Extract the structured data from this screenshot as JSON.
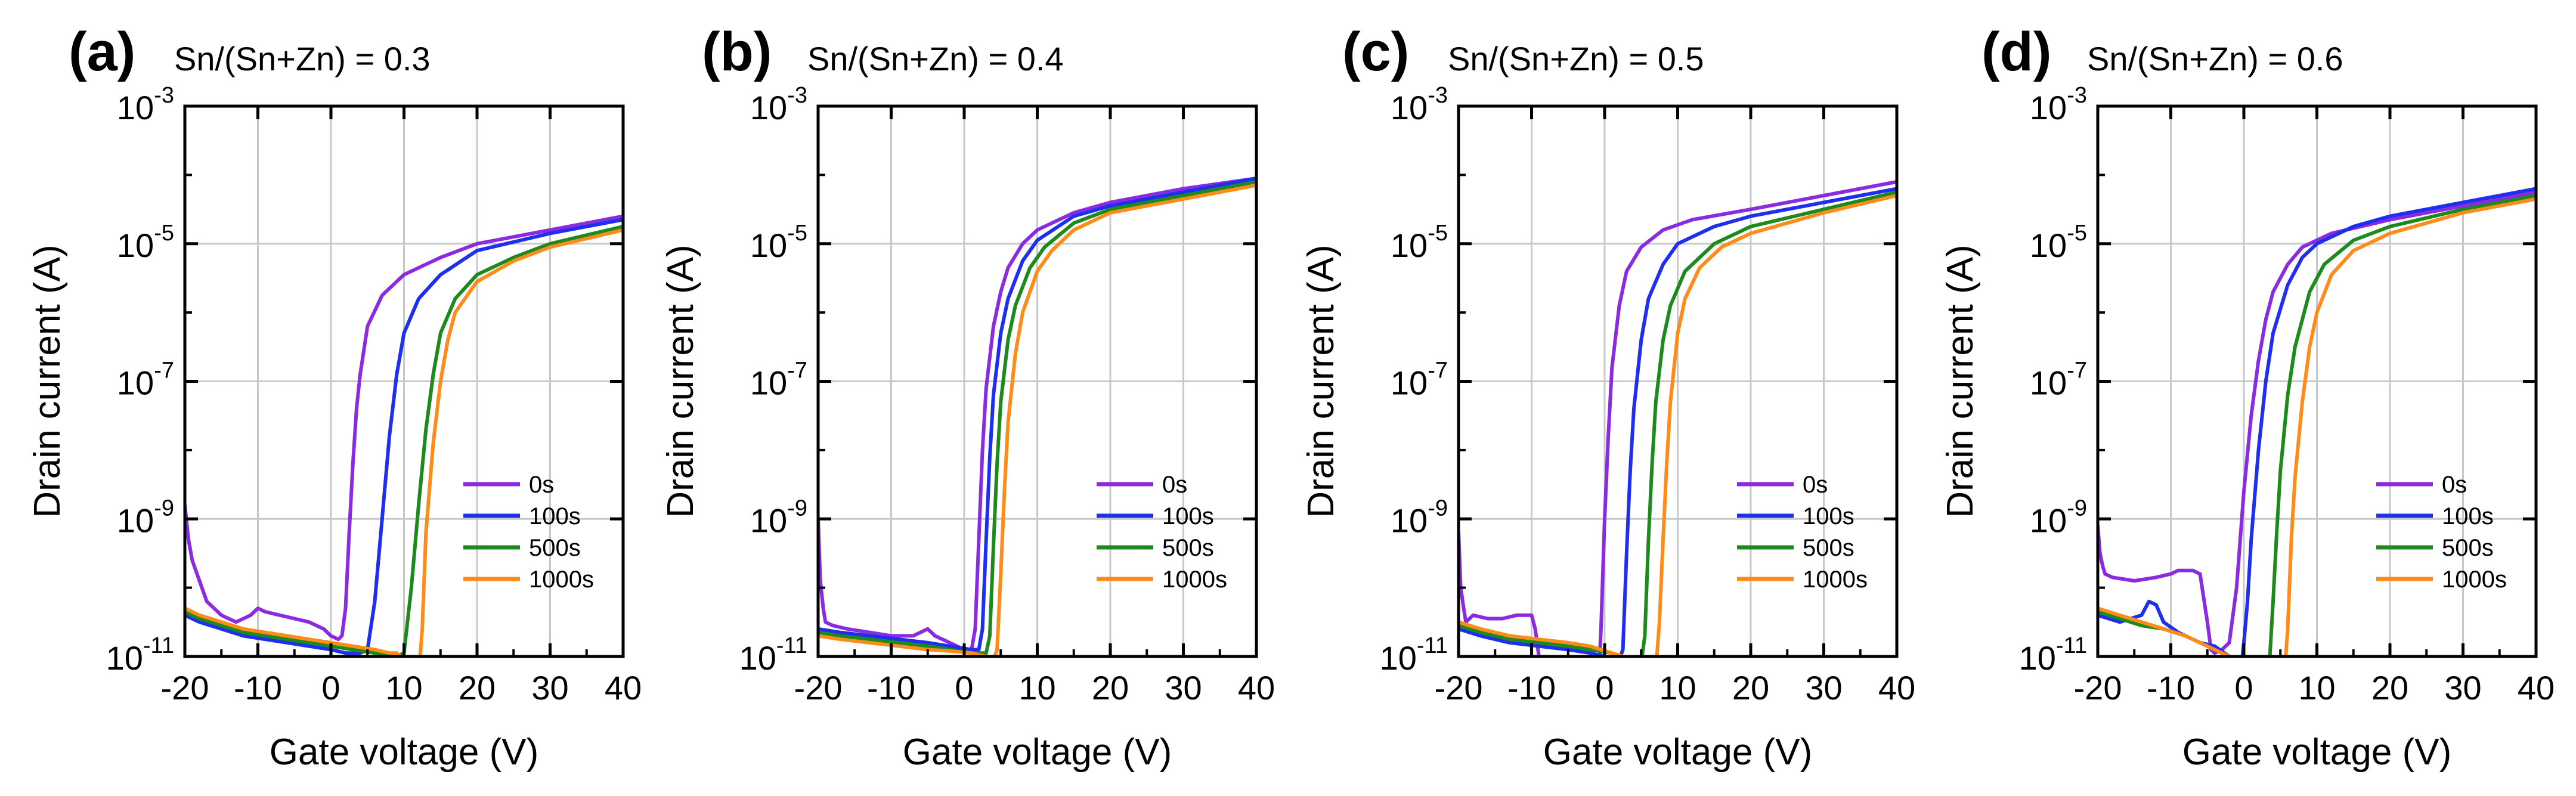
{
  "figure": {
    "legend_labels": [
      "0s",
      "100s",
      "500s",
      "1000s"
    ],
    "series_colors": [
      "#8a2be2",
      "#1f2ff0",
      "#1e8a1e",
      "#ff8c1a"
    ],
    "x_label": "Gate voltage (V)",
    "y_label": "Drain current (A)",
    "x_ticks": [
      "-20",
      "-10",
      "0",
      "10",
      "20",
      "30",
      "40"
    ],
    "y_ticks": [
      {
        "base": "10",
        "exp": "-3"
      },
      {
        "base": "10",
        "exp": "-5"
      },
      {
        "base": "10",
        "exp": "-7"
      },
      {
        "base": "10",
        "exp": "-9"
      },
      {
        "base": "10",
        "exp": "-11"
      }
    ]
  },
  "chart_data": [
    {
      "type": "line",
      "panel_label": "(a)",
      "title": "Sn/(Sn+Zn) = 0.3",
      "xlabel": "Gate voltage (V)",
      "ylabel": "Drain current (A)",
      "xlim": [
        -20,
        40
      ],
      "ylim_log10": [
        -11,
        -3
      ],
      "y_scale": "log",
      "legend_position": "lower-right",
      "series": [
        {
          "name": "0s",
          "x": [
            -20,
            -19.5,
            -19,
            -18,
            -17,
            -16,
            -15,
            -13,
            -11,
            -10,
            -9,
            -7,
            -5,
            -3,
            -1,
            0,
            1,
            1.5,
            2,
            2.5,
            3,
            3.5,
            4,
            5,
            7,
            10,
            15,
            20,
            30,
            40
          ],
          "log_y": [
            -8.8,
            -9.3,
            -9.6,
            -9.9,
            -10.2,
            -10.3,
            -10.4,
            -10.5,
            -10.4,
            -10.3,
            -10.35,
            -10.4,
            -10.45,
            -10.5,
            -10.6,
            -10.7,
            -10.75,
            -10.7,
            -10.3,
            -9.2,
            -8.2,
            -7.4,
            -6.9,
            -6.2,
            -5.75,
            -5.45,
            -5.2,
            -5.0,
            -4.8,
            -4.6
          ]
        },
        {
          "name": "100s",
          "x": [
            -20,
            -18,
            -15,
            -12,
            -9,
            -6,
            -3,
            0,
            2,
            4,
            5,
            6,
            7,
            8,
            9,
            10,
            12,
            15,
            20,
            30,
            40
          ],
          "log_y": [
            -10.4,
            -10.5,
            -10.6,
            -10.7,
            -10.75,
            -10.8,
            -10.85,
            -10.9,
            -10.95,
            -10.95,
            -10.9,
            -10.2,
            -9.0,
            -7.8,
            -6.9,
            -6.3,
            -5.8,
            -5.45,
            -5.1,
            -4.85,
            -4.65
          ]
        },
        {
          "name": "500s",
          "x": [
            -20,
            -18,
            -15,
            -12,
            -9,
            -6,
            -3,
            0,
            3,
            6,
            8,
            9,
            10,
            11,
            12,
            13,
            14,
            15,
            17,
            20,
            25,
            30,
            40
          ],
          "log_y": [
            -10.35,
            -10.45,
            -10.55,
            -10.65,
            -10.7,
            -10.75,
            -10.8,
            -10.85,
            -10.9,
            -10.95,
            -11.0,
            -11.0,
            -10.95,
            -10.0,
            -8.8,
            -7.7,
            -6.9,
            -6.3,
            -5.8,
            -5.45,
            -5.2,
            -5.0,
            -4.75
          ]
        },
        {
          "name": "1000s",
          "x": [
            -20,
            -18,
            -15,
            -12,
            -9,
            -6,
            -3,
            0,
            3,
            6,
            8,
            9,
            10,
            11,
            11.5,
            12,
            12.5,
            13,
            14,
            15,
            16,
            17,
            20,
            25,
            30,
            40
          ],
          "log_y": [
            -10.3,
            -10.4,
            -10.5,
            -10.6,
            -10.65,
            -10.7,
            -10.75,
            -10.8,
            -10.85,
            -10.9,
            -10.95,
            -10.95,
            -11.05,
            -11.25,
            -11.3,
            -11.3,
            -10.6,
            -9.2,
            -7.9,
            -7.0,
            -6.4,
            -6.0,
            -5.55,
            -5.25,
            -5.05,
            -4.8
          ]
        }
      ]
    },
    {
      "type": "line",
      "panel_label": "(b)",
      "title": "Sn/(Sn+Zn) = 0.4",
      "xlabel": "Gate voltage (V)",
      "ylabel": "Drain current (A)",
      "xlim": [
        -20,
        40
      ],
      "ylim_log10": [
        -11,
        -3
      ],
      "y_scale": "log",
      "legend_position": "lower-right",
      "series": [
        {
          "name": "0s",
          "x": [
            -20,
            -19.7,
            -19.3,
            -19,
            -18,
            -16,
            -13,
            -10,
            -7,
            -5,
            -4,
            -2,
            0,
            1,
            1.5,
            2,
            2.5,
            3,
            4,
            5,
            6,
            8,
            10,
            15,
            20,
            30,
            40
          ],
          "log_y": [
            -9.0,
            -9.9,
            -10.3,
            -10.5,
            -10.55,
            -10.6,
            -10.65,
            -10.7,
            -10.7,
            -10.6,
            -10.7,
            -10.8,
            -10.9,
            -10.9,
            -10.6,
            -9.3,
            -8.0,
            -7.1,
            -6.2,
            -5.7,
            -5.35,
            -5.0,
            -4.8,
            -4.55,
            -4.4,
            -4.2,
            -4.05
          ]
        },
        {
          "name": "100s",
          "x": [
            -20,
            -17,
            -13,
            -9,
            -5,
            -2,
            1,
            2,
            2.5,
            3,
            3.5,
            4,
            5,
            6,
            8,
            10,
            15,
            20,
            30,
            40
          ],
          "log_y": [
            -10.6,
            -10.65,
            -10.7,
            -10.75,
            -10.8,
            -10.85,
            -10.9,
            -10.9,
            -10.6,
            -9.3,
            -8.1,
            -7.2,
            -6.3,
            -5.8,
            -5.25,
            -4.95,
            -4.6,
            -4.45,
            -4.25,
            -4.05
          ]
        },
        {
          "name": "500s",
          "x": [
            -20,
            -17,
            -13,
            -9,
            -5,
            -2,
            1,
            3,
            3.5,
            4,
            4.5,
            5,
            6,
            7,
            9,
            11,
            15,
            20,
            30,
            40
          ],
          "log_y": [
            -10.65,
            -10.7,
            -10.75,
            -10.8,
            -10.85,
            -10.9,
            -10.95,
            -10.95,
            -10.7,
            -9.4,
            -8.2,
            -7.3,
            -6.4,
            -5.9,
            -5.35,
            -5.05,
            -4.7,
            -4.5,
            -4.3,
            -4.1
          ]
        },
        {
          "name": "1000s",
          "x": [
            -20,
            -17,
            -13,
            -9,
            -5,
            -2,
            1,
            3,
            4,
            4.5,
            5,
            5.5,
            6,
            7,
            8,
            10,
            12,
            15,
            20,
            30,
            40
          ],
          "log_y": [
            -10.7,
            -10.75,
            -10.8,
            -10.85,
            -10.9,
            -10.92,
            -10.95,
            -11.0,
            -11.05,
            -10.9,
            -9.8,
            -8.6,
            -7.6,
            -6.6,
            -6.0,
            -5.4,
            -5.1,
            -4.8,
            -4.55,
            -4.35,
            -4.15
          ]
        }
      ]
    },
    {
      "type": "line",
      "panel_label": "(c)",
      "title": "Sn/(Sn+Zn) = 0.5",
      "xlabel": "Gate voltage (V)",
      "ylabel": "Drain current (A)",
      "xlim": [
        -20,
        40
      ],
      "ylim_log10": [
        -11,
        -3
      ],
      "y_scale": "log",
      "legend_position": "lower-right",
      "series": [
        {
          "name": "0s",
          "x": [
            -20,
            -19.7,
            -19.3,
            -19,
            -18,
            -16,
            -14,
            -12,
            -10,
            -9.5,
            -9,
            -8.5,
            -7,
            -5,
            -3,
            -1.5,
            -1,
            -0.5,
            0,
            0.5,
            1,
            2,
            3,
            5,
            8,
            12,
            20,
            30,
            40
          ],
          "log_y": [
            -9.2,
            -10.0,
            -10.3,
            -10.5,
            -10.4,
            -10.45,
            -10.45,
            -10.4,
            -10.4,
            -10.6,
            -11.0,
            -11.3,
            -11.4,
            -11.45,
            -11.55,
            -11.65,
            -11.7,
            -10.6,
            -9.0,
            -7.8,
            -6.8,
            -5.9,
            -5.4,
            -5.05,
            -4.8,
            -4.65,
            -4.5,
            -4.3,
            -4.1
          ]
        },
        {
          "name": "100s",
          "x": [
            -20,
            -17,
            -13,
            -9,
            -5,
            -2,
            0,
            2,
            2.5,
            3,
            3.5,
            4,
            5,
            6,
            8,
            10,
            15,
            20,
            30,
            40
          ],
          "log_y": [
            -10.6,
            -10.7,
            -10.8,
            -10.85,
            -10.9,
            -10.95,
            -11.0,
            -11.05,
            -10.9,
            -9.5,
            -8.3,
            -7.4,
            -6.4,
            -5.8,
            -5.3,
            -5.0,
            -4.75,
            -4.6,
            -4.4,
            -4.2
          ]
        },
        {
          "name": "500s",
          "x": [
            -20,
            -17,
            -13,
            -9,
            -5,
            -2,
            1,
            4,
            5,
            5.5,
            6,
            6.5,
            7,
            8,
            9,
            11,
            15,
            20,
            30,
            40
          ],
          "log_y": [
            -10.55,
            -10.65,
            -10.75,
            -10.8,
            -10.85,
            -10.9,
            -10.95,
            -11.05,
            -11.1,
            -10.7,
            -9.3,
            -8.2,
            -7.3,
            -6.4,
            -5.9,
            -5.4,
            -5.0,
            -4.75,
            -4.5,
            -4.25
          ]
        },
        {
          "name": "1000s",
          "x": [
            -20,
            -17,
            -13,
            -9,
            -5,
            -2,
            1,
            4,
            6,
            7,
            7.5,
            8,
            8.5,
            9,
            10,
            11,
            13,
            16,
            20,
            30,
            40
          ],
          "log_y": [
            -10.5,
            -10.6,
            -10.7,
            -10.75,
            -10.8,
            -10.85,
            -10.95,
            -11.05,
            -11.15,
            -11.2,
            -10.5,
            -9.3,
            -8.2,
            -7.3,
            -6.3,
            -5.8,
            -5.35,
            -5.05,
            -4.85,
            -4.55,
            -4.3
          ]
        }
      ]
    },
    {
      "type": "line",
      "panel_label": "(d)",
      "title": "Sn/(Sn+Zn) = 0.6",
      "xlabel": "Gate voltage (V)",
      "ylabel": "Drain current (A)",
      "xlim": [
        -20,
        40
      ],
      "ylim_log10": [
        -11,
        -3
      ],
      "y_scale": "log",
      "legend_position": "lower-right",
      "series": [
        {
          "name": "0s",
          "x": [
            -20,
            -19.7,
            -19.3,
            -19,
            -18,
            -15,
            -12,
            -10,
            -9,
            -7,
            -6,
            -5,
            -4.5,
            -4,
            -3,
            -2,
            -1,
            0,
            1,
            2,
            3,
            4,
            6,
            8,
            12,
            20,
            30,
            40
          ],
          "log_y": [
            -9.1,
            -9.5,
            -9.7,
            -9.8,
            -9.85,
            -9.9,
            -9.85,
            -9.8,
            -9.75,
            -9.75,
            -9.8,
            -10.5,
            -10.9,
            -10.95,
            -10.9,
            -10.8,
            -10.0,
            -8.6,
            -7.5,
            -6.7,
            -6.1,
            -5.7,
            -5.3,
            -5.05,
            -4.85,
            -4.65,
            -4.45,
            -4.25
          ]
        },
        {
          "name": "100s",
          "x": [
            -20,
            -17,
            -14,
            -13,
            -12,
            -11,
            -9,
            -6,
            -4,
            -2,
            -1,
            -0.5,
            0,
            0.5,
            1,
            2,
            3,
            4,
            6,
            8,
            10,
            15,
            20,
            30,
            40
          ],
          "log_y": [
            -10.4,
            -10.5,
            -10.4,
            -10.2,
            -10.25,
            -10.5,
            -10.65,
            -10.8,
            -10.85,
            -11.0,
            -11.05,
            -11.3,
            -10.8,
            -10.2,
            -9.3,
            -8.0,
            -7.0,
            -6.3,
            -5.6,
            -5.2,
            -5.0,
            -4.75,
            -4.6,
            -4.4,
            -4.2
          ]
        },
        {
          "name": "500s",
          "x": [
            -20,
            -17,
            -14,
            -11,
            -8,
            -5,
            -2,
            0,
            2,
            3,
            3.5,
            4,
            4.5,
            5,
            6,
            7,
            9,
            11,
            15,
            20,
            30,
            40
          ],
          "log_y": [
            -10.35,
            -10.45,
            -10.55,
            -10.6,
            -10.7,
            -10.85,
            -11.0,
            -11.1,
            -11.2,
            -11.25,
            -11.1,
            -10.2,
            -9.2,
            -8.3,
            -7.2,
            -6.5,
            -5.7,
            -5.3,
            -4.95,
            -4.75,
            -4.5,
            -4.3
          ]
        },
        {
          "name": "1000s",
          "x": [
            -20,
            -17,
            -14,
            -11,
            -8,
            -5,
            -2,
            0,
            2,
            4,
            5,
            5.5,
            6,
            6.5,
            7,
            8,
            9,
            10,
            12,
            15,
            20,
            30,
            40
          ],
          "log_y": [
            -10.3,
            -10.4,
            -10.5,
            -10.6,
            -10.7,
            -10.85,
            -11.0,
            -11.1,
            -11.2,
            -11.3,
            -11.35,
            -11.35,
            -10.6,
            -9.3,
            -8.4,
            -7.3,
            -6.5,
            -6.0,
            -5.45,
            -5.1,
            -4.85,
            -4.55,
            -4.35
          ]
        }
      ]
    }
  ]
}
